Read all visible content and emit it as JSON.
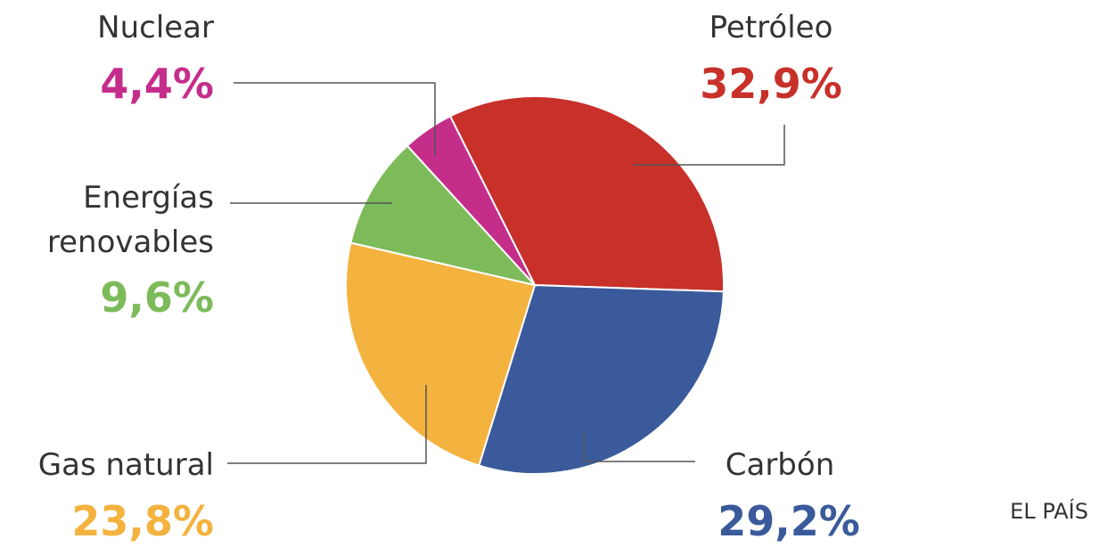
{
  "chart_data": {
    "type": "pie",
    "categories": [
      "Petróleo",
      "Carbón",
      "Gas natural",
      "Energías renovables",
      "Nuclear"
    ],
    "values": [
      32.9,
      29.2,
      23.8,
      9.6,
      4.4
    ],
    "value_labels": [
      "32,9%",
      "29,2%",
      "23,8%",
      "9,6%",
      "4,4%"
    ],
    "colors": [
      "#c8302a",
      "#3a5a9b",
      "#f4b23e",
      "#7dbb5a",
      "#c52d8a"
    ],
    "source": "EL PAÍS"
  }
}
